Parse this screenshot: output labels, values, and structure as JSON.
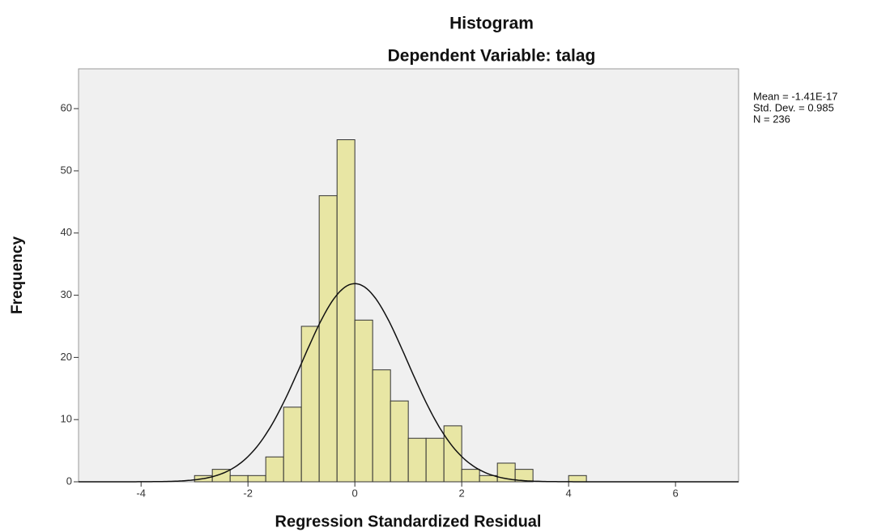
{
  "chart_data": {
    "type": "histogram",
    "title": "Histogram",
    "subtitle": "Dependent Variable: talag",
    "xlabel": "Regression Standardized Residual",
    "ylabel": "Frequency",
    "bins": [
      -3,
      -2.667,
      -2.333,
      -2,
      -1.667,
      -1.333,
      -1,
      -0.667,
      -0.333,
      0,
      0.333,
      0.667,
      1,
      1.333,
      1.667,
      2,
      2.333,
      2.667,
      3,
      3.333,
      3.667,
      4,
      4.333
    ],
    "values": [
      1,
      2,
      1,
      1,
      4,
      12,
      25,
      46,
      55,
      26,
      18,
      13,
      7,
      7,
      9,
      2,
      1,
      3,
      2,
      0,
      0,
      1
    ],
    "color": "#e8e6a4",
    "xlim": [
      -5.17,
      7.18
    ],
    "ylim": [
      0,
      66.4
    ],
    "xticks": [
      -4,
      -2,
      0,
      2,
      4,
      6
    ],
    "yticks": [
      0,
      10,
      20,
      30,
      40,
      50,
      60
    ],
    "grid": false,
    "stats": {
      "mean": {
        "value": -1.41e-17,
        "label": "Mean = -1.41E-17"
      },
      "sd": {
        "value": 0.985,
        "label": "Std. Dev. = 0.985"
      },
      "n": {
        "value": 236,
        "label": "N = 236"
      }
    }
  }
}
